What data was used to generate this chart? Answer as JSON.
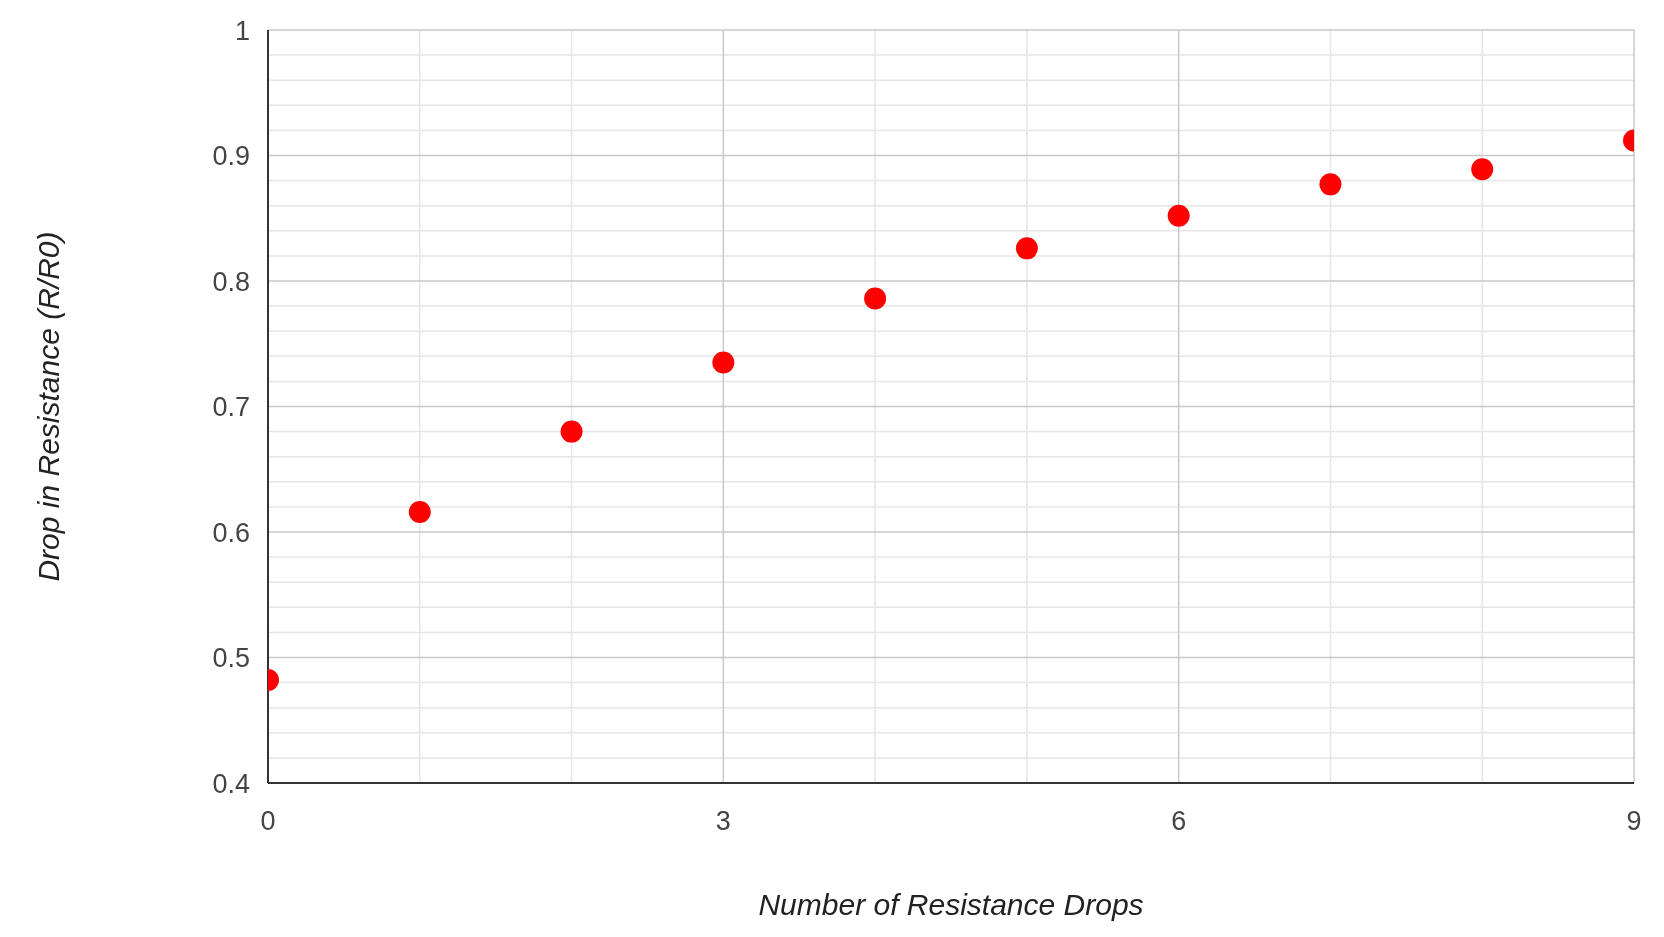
{
  "chart_data": {
    "type": "scatter",
    "xlabel": "Number of Resistance Drops",
    "ylabel": "Drop in Resistance (R/R0)",
    "x": [
      0,
      1,
      2,
      3,
      4,
      5,
      6,
      7,
      8,
      9
    ],
    "series": [
      {
        "color": "#ff0000",
        "values": [
          0.482,
          0.616,
          0.68,
          0.735,
          0.786,
          0.826,
          0.852,
          0.877,
          0.889,
          0.912
        ]
      }
    ],
    "xlim": [
      0,
      9
    ],
    "xticks": [
      0,
      3,
      6,
      9
    ],
    "ylim": [
      0.4,
      1
    ],
    "yticks": [
      0.4,
      0.5,
      0.6,
      0.7,
      0.8,
      0.9,
      1
    ],
    "grid": true,
    "marker": "circle",
    "legend": false
  }
}
